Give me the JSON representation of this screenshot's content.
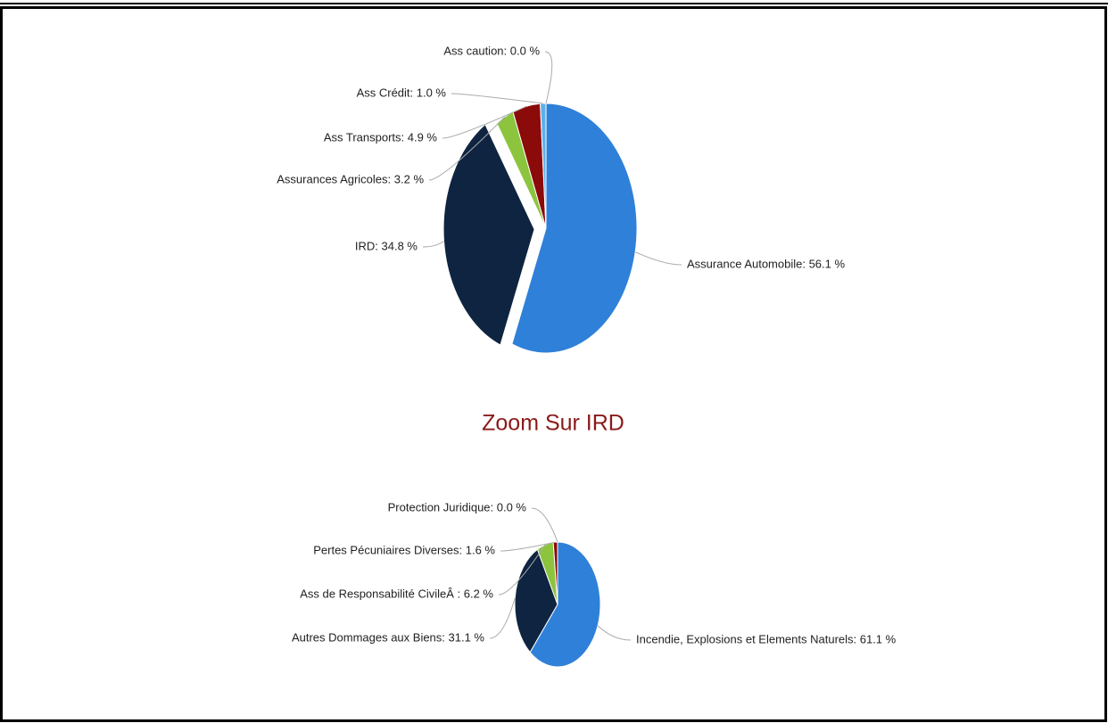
{
  "chart_data": [
    {
      "type": "pie",
      "labels": [
        "Assurance Automobile: 56.1 %",
        "IRD: 34.8 %",
        "Assurances Agricoles: 3.2 %",
        "Ass Transports: 4.9 %",
        "Ass Crédit: 1.0 %",
        "Ass caution: 0.0 %"
      ],
      "values": [
        56.1,
        34.8,
        3.2,
        4.9,
        1.0,
        0.0
      ],
      "colors": [
        "#2f80d8",
        "#0f2440",
        "#8cc43e",
        "#8b0a0a",
        "#5bb0ea",
        "#c9a0dc"
      ],
      "sliced": [
        false,
        true,
        false,
        false,
        false,
        false
      ]
    },
    {
      "type": "pie",
      "title": "Zoom Sur IRD",
      "labels": [
        "Incendie, Explosions et Elements Naturels: 61.1 %",
        "Autres Dommages aux Biens: 31.1 %",
        "Ass de Responsabilité CivileÂ : 6.2 %",
        "Pertes Pécuniaires Diverses: 1.6 %",
        "Protection Juridique: 0.0 %"
      ],
      "values": [
        61.1,
        31.1,
        6.2,
        1.6,
        0.0
      ],
      "colors": [
        "#2f80d8",
        "#0f2440",
        "#8cc43e",
        "#8b0a0a",
        "#5bb0ea"
      ],
      "sliced": [
        false,
        false,
        false,
        false,
        false
      ]
    }
  ]
}
